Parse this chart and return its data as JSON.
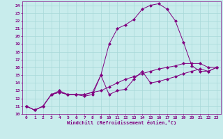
{
  "xlabel": "Windchill (Refroidissement éolien,°C)",
  "bg_color": "#c8ecec",
  "grid_color": "#a8d8d8",
  "line_color": "#800080",
  "xlim": [
    -0.5,
    23.5
  ],
  "ylim": [
    10,
    24.5
  ],
  "xticks": [
    0,
    1,
    2,
    3,
    4,
    5,
    6,
    7,
    8,
    9,
    10,
    11,
    12,
    13,
    14,
    15,
    16,
    17,
    18,
    19,
    20,
    21,
    22,
    23
  ],
  "yticks": [
    10,
    11,
    12,
    13,
    14,
    15,
    16,
    17,
    18,
    19,
    20,
    21,
    22,
    23,
    24
  ],
  "line1_x": [
    0,
    1,
    2,
    3,
    4,
    5,
    6,
    7,
    8,
    9,
    10,
    11,
    12,
    13,
    14,
    15,
    16,
    17,
    18,
    19,
    20,
    21,
    22,
    23
  ],
  "line1_y": [
    11.0,
    10.5,
    11.0,
    12.5,
    12.8,
    12.5,
    12.5,
    12.3,
    12.5,
    15.0,
    12.5,
    13.0,
    13.2,
    14.5,
    15.5,
    14.0,
    14.2,
    14.5,
    14.8,
    15.2,
    15.5,
    15.8,
    15.5,
    16.0
  ],
  "line2_x": [
    0,
    1,
    2,
    3,
    4,
    5,
    6,
    7,
    8,
    9,
    10,
    11,
    12,
    13,
    14,
    15,
    16,
    17,
    18,
    19,
    20,
    21,
    22,
    23
  ],
  "line2_y": [
    11.0,
    10.5,
    11.0,
    12.5,
    12.8,
    12.5,
    12.5,
    12.5,
    12.8,
    15.0,
    19.0,
    21.0,
    21.5,
    22.2,
    23.5,
    24.0,
    24.2,
    23.5,
    22.0,
    19.2,
    16.2,
    15.5,
    15.5,
    16.0
  ],
  "line3_x": [
    0,
    1,
    2,
    3,
    4,
    5,
    6,
    7,
    8,
    9,
    10,
    11,
    12,
    13,
    14,
    15,
    16,
    17,
    18,
    19,
    20,
    21,
    22,
    23
  ],
  "line3_y": [
    11.0,
    10.5,
    11.0,
    12.5,
    13.0,
    12.5,
    12.5,
    12.5,
    12.8,
    13.0,
    13.5,
    14.0,
    14.5,
    14.8,
    15.2,
    15.5,
    15.8,
    16.0,
    16.2,
    16.5,
    16.5,
    16.5,
    16.0,
    16.0
  ],
  "marker": "D",
  "markersize": 2,
  "linewidth": 0.7,
  "tick_fontsize": 4.5,
  "xlabel_fontsize": 5.0
}
